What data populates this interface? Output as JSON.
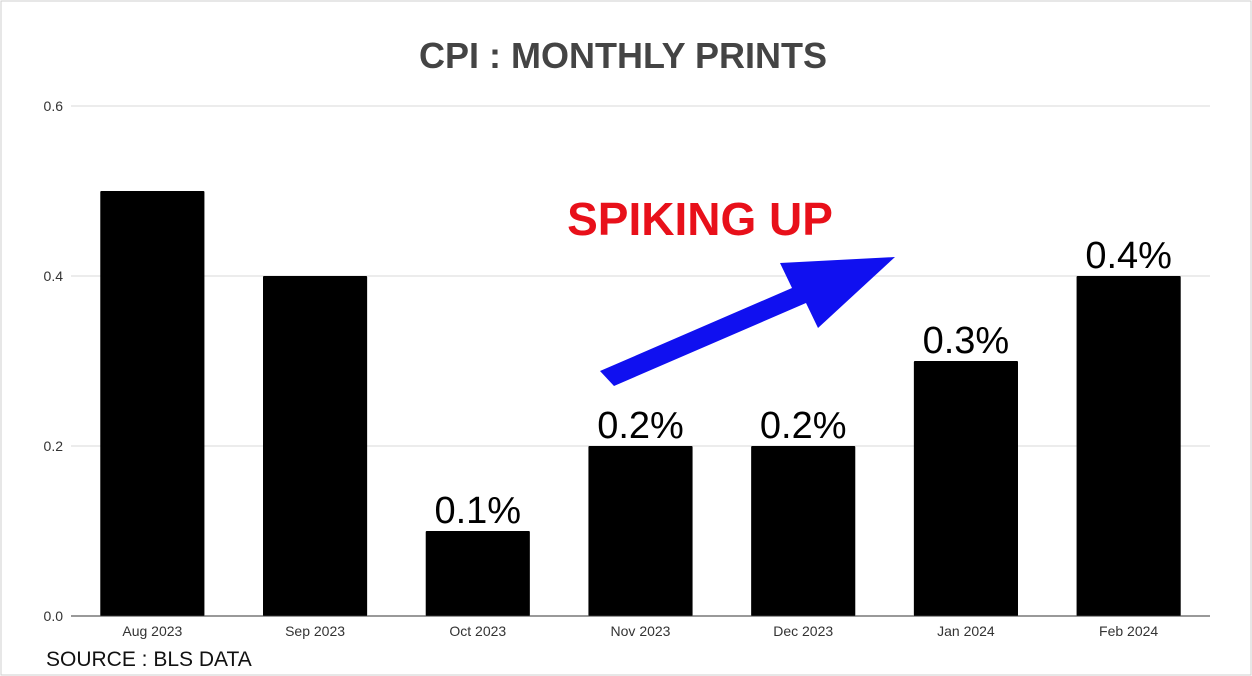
{
  "chart_data": {
    "type": "bar",
    "title": "CPI : MONTHLY PRINTS",
    "categories": [
      "Aug 2023",
      "Sep 2023",
      "Oct 2023",
      "Nov 2023",
      "Dec 2023",
      "Jan 2024",
      "Feb 2024"
    ],
    "values": [
      0.5,
      0.4,
      0.1,
      0.2,
      0.2,
      0.3,
      0.4
    ],
    "data_labels": [
      "",
      "",
      "0.1%",
      "0.2%",
      "0.2%",
      "0.3%",
      "0.4%"
    ],
    "ylim": [
      0,
      0.6
    ],
    "yticks": [
      "0.0",
      "0.2",
      "0.4",
      "0.6"
    ],
    "ytick_values": [
      0,
      0.2,
      0.4,
      0.6
    ],
    "grid": true,
    "legend": "none",
    "annotation": {
      "text": "SPIKING UP",
      "color": "#e8101a",
      "arrow_color": "#1010f0"
    },
    "source": "SOURCE : BLS DATA",
    "colors": {
      "bar": "#000000",
      "title": "#444444",
      "grid": "#d9d9d9",
      "axis_text": "#333333"
    }
  }
}
